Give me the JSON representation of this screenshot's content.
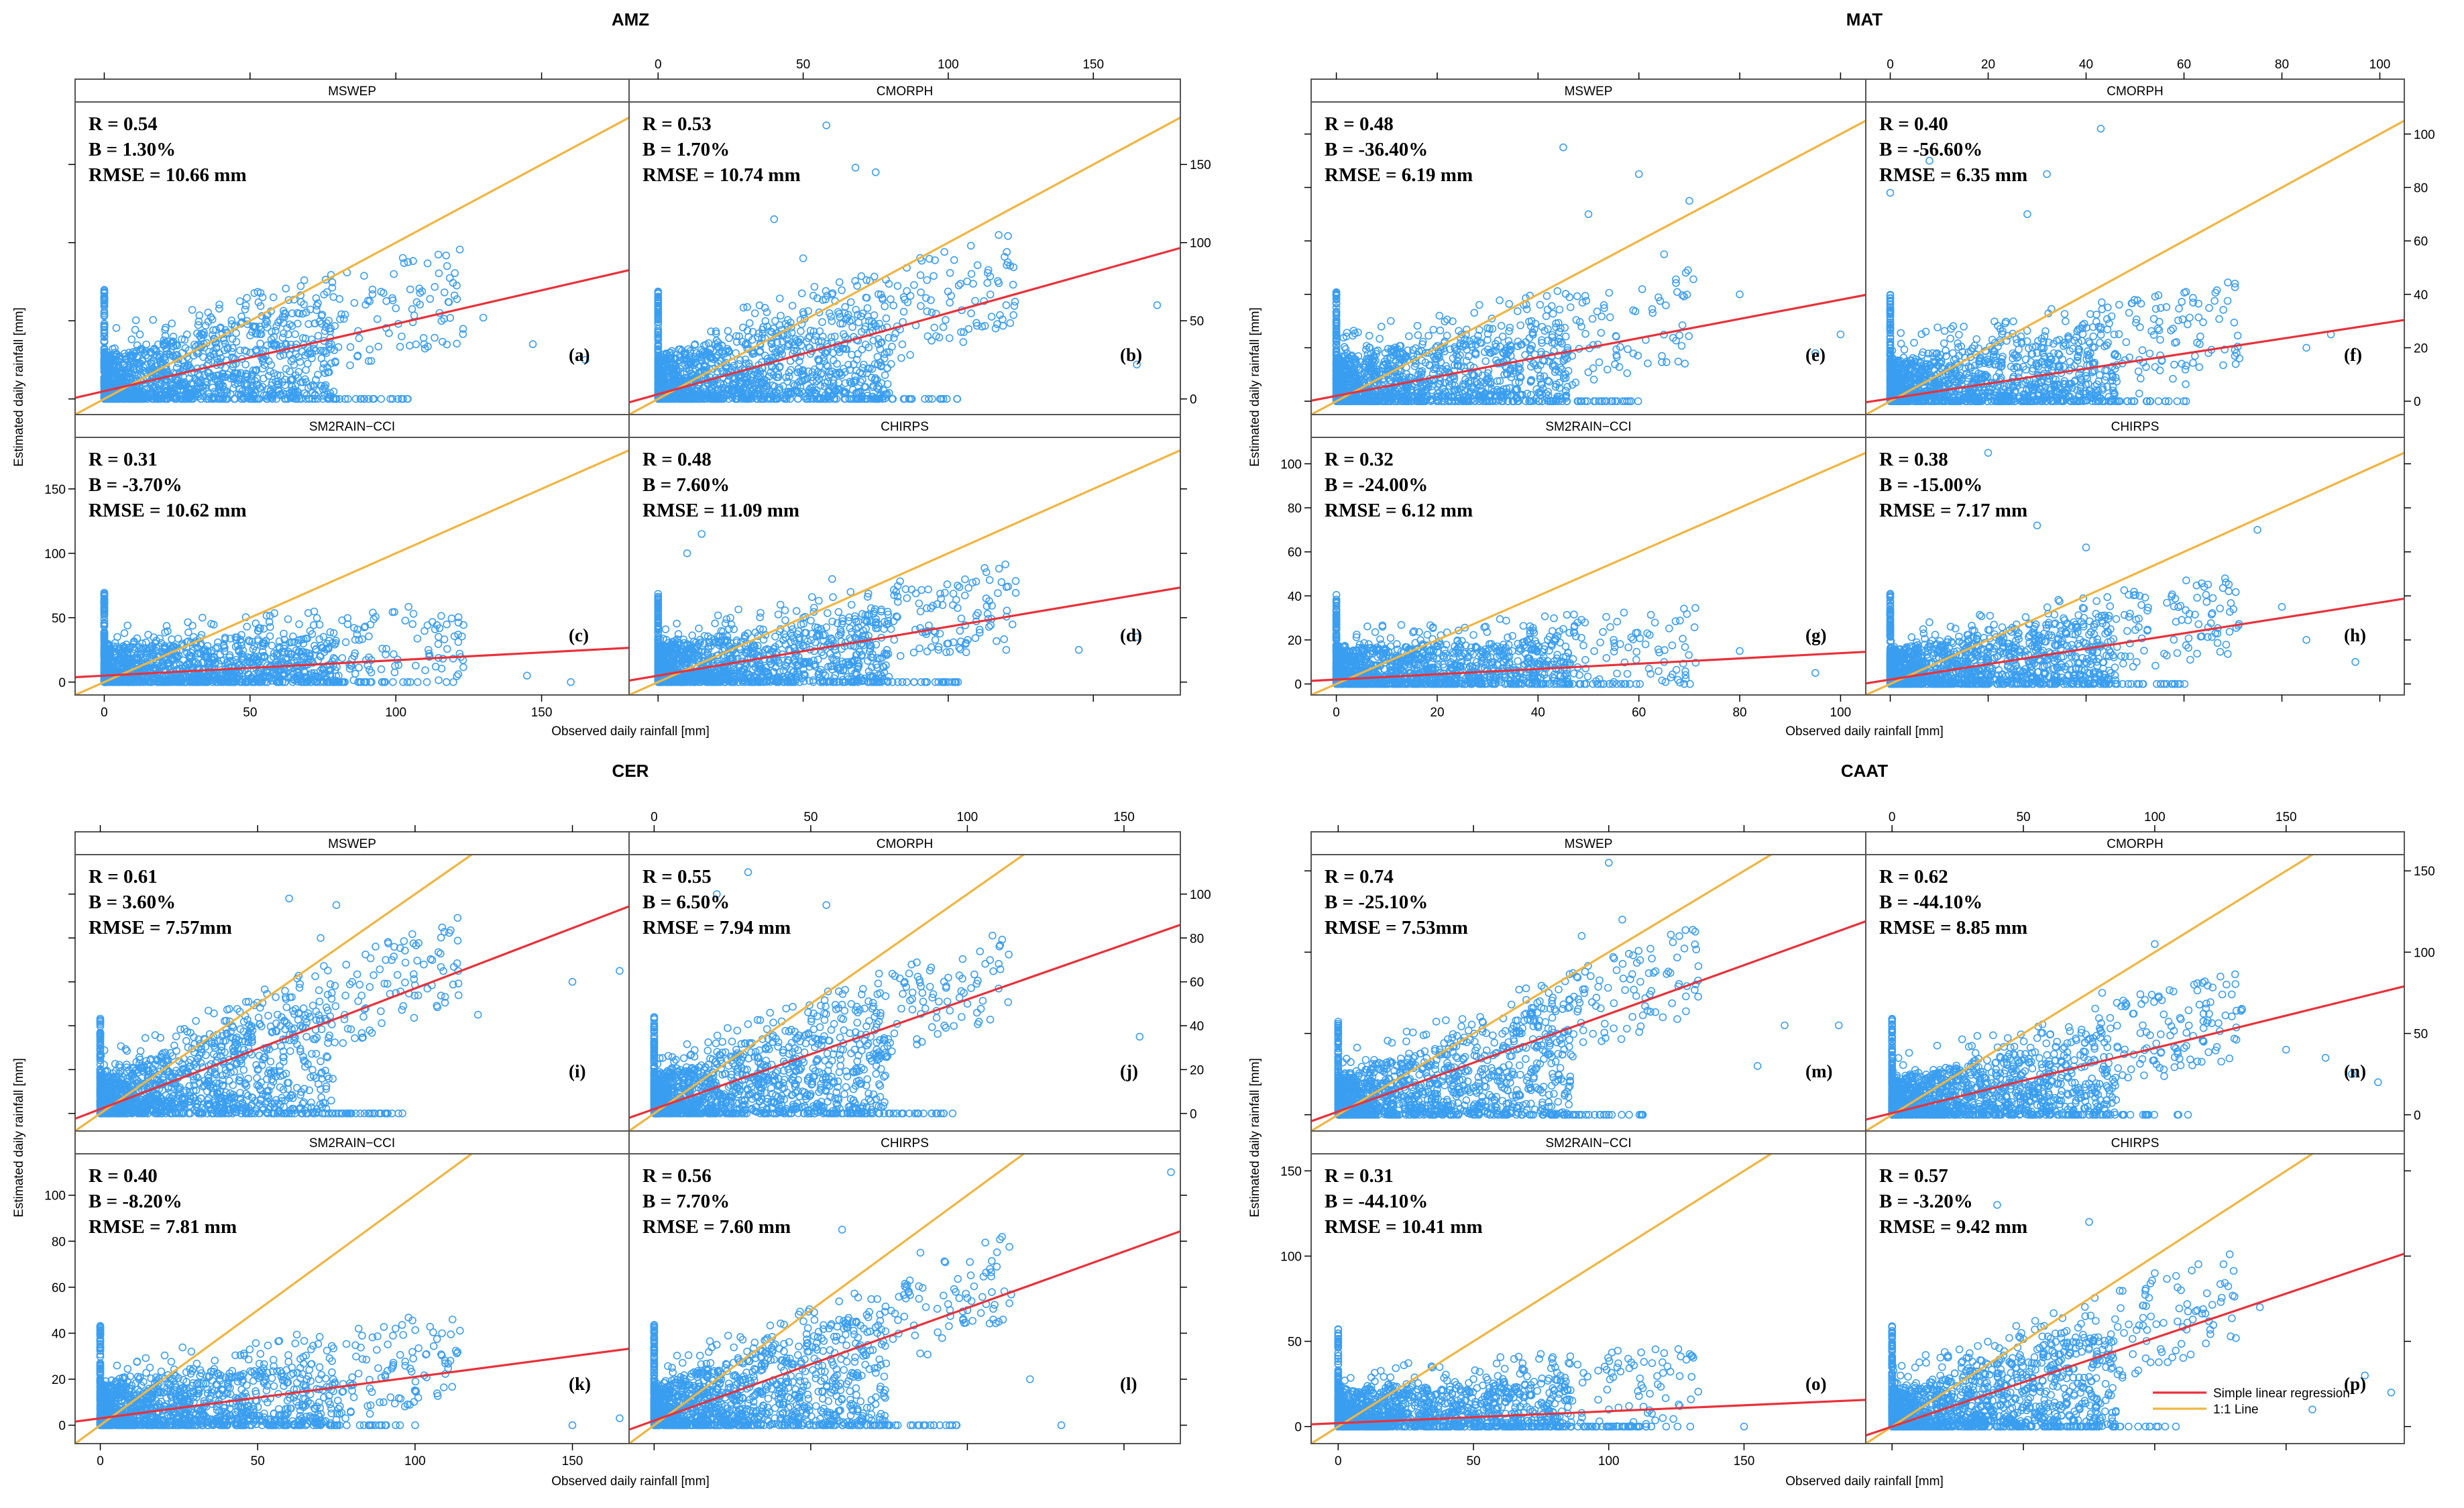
{
  "legend": {
    "regression": "Simple linear regression",
    "oneone": "1:1 Line"
  },
  "colors": {
    "points": "#3a9ef0",
    "regression": "#e8313a",
    "oneone": "#f0b540",
    "frame": "#555555",
    "strip_bg": "#ffffff"
  },
  "chart_data": [
    {
      "type": "scatter",
      "title": "AMZ",
      "xlabel": "Observed daily rainfall [mm]",
      "ylabel": "Estimated daily rainfall [mm]",
      "xlim": [
        -10,
        180
      ],
      "ylim": [
        -10,
        190
      ],
      "x_ticks": [
        0,
        50,
        100,
        150
      ],
      "y_ticks": [
        0,
        50,
        100,
        150
      ],
      "y_ticks_right": [
        0,
        50,
        100,
        150
      ],
      "panels": [
        {
          "product": "MSWEP",
          "tag": "(a)",
          "stats": [
            "R = 0.54",
            "B = 1.30%",
            "RMSE = 10.66 mm"
          ],
          "intercept": 5,
          "slope": 0.43,
          "outliers": [
            [
              92,
              70
            ],
            [
              118,
              62
            ],
            [
              100,
              58
            ],
            [
              58,
              65
            ],
            [
              115,
              55
            ],
            [
              92,
              67
            ],
            [
              130,
              52
            ],
            [
              165,
              25
            ],
            [
              102,
              40
            ],
            [
              147,
              35
            ]
          ]
        },
        {
          "product": "CMORPH",
          "tag": "(b)",
          "stats": [
            "R = 0.53",
            "B = 1.70%",
            "RMSE = 10.74 mm"
          ],
          "intercept": 3,
          "slope": 0.52,
          "outliers": [
            [
              58,
              175
            ],
            [
              68,
              148
            ],
            [
              75,
              145
            ],
            [
              40,
              115
            ],
            [
              165,
              22
            ],
            [
              172,
              60
            ],
            [
              108,
              80
            ],
            [
              120,
              60
            ],
            [
              50,
              90
            ]
          ]
        },
        {
          "product": "SM2RAIN−CCI",
          "tag": "(c)",
          "stats": [
            "R = 0.31",
            "B = -3.70%",
            "RMSE = 10.62 mm"
          ],
          "intercept": 5,
          "slope": 0.12,
          "outliers": [
            [
              85,
              18
            ],
            [
              95,
              10
            ],
            [
              105,
              0
            ],
            [
              145,
              5
            ],
            [
              160,
              0
            ]
          ]
        },
        {
          "product": "CHIRPS",
          "tag": "(d)",
          "stats": [
            "R = 0.48",
            "B = 7.60%",
            "RMSE = 11.09 mm"
          ],
          "intercept": 5,
          "slope": 0.38,
          "outliers": [
            [
              15,
              115
            ],
            [
              10,
              100
            ],
            [
              60,
              80
            ],
            [
              145,
              25
            ],
            [
              165,
              35
            ],
            [
              120,
              25
            ],
            [
              100,
              30
            ]
          ]
        }
      ]
    },
    {
      "type": "scatter",
      "title": "MAT",
      "xlabel": "Observed daily rainfall [mm]",
      "ylabel": "Estimated daily rainfall [mm]",
      "xlim": [
        -5,
        105
      ],
      "ylim": [
        -5,
        112
      ],
      "x_ticks": [
        0,
        20,
        40,
        60,
        80,
        100
      ],
      "y_ticks": [
        0,
        20,
        40,
        60,
        80,
        100
      ],
      "y_ticks_right": [
        0,
        20,
        40,
        60,
        80,
        100
      ],
      "panels": [
        {
          "product": "MSWEP",
          "tag": "(e)",
          "stats": [
            "R = 0.48",
            "B = -36.40%",
            "RMSE = 6.19 mm"
          ],
          "intercept": 2,
          "slope": 0.36,
          "outliers": [
            [
              45,
              95
            ],
            [
              60,
              85
            ],
            [
              70,
              75
            ],
            [
              50,
              70
            ],
            [
              95,
              18
            ],
            [
              100,
              25
            ],
            [
              80,
              40
            ],
            [
              65,
              55
            ]
          ]
        },
        {
          "product": "CMORPH",
          "tag": "(f)",
          "stats": [
            "R = 0.40",
            "B = -56.60%",
            "RMSE =  6.35 mm"
          ],
          "intercept": 1,
          "slope": 0.28,
          "outliers": [
            [
              43,
              102
            ],
            [
              32,
              85
            ],
            [
              28,
              70
            ],
            [
              0,
              78
            ],
            [
              8,
              90
            ],
            [
              65,
              18
            ],
            [
              85,
              20
            ],
            [
              90,
              25
            ]
          ]
        },
        {
          "product": "SM2RAIN−CCI",
          "tag": "(g)",
          "stats": [
            "R = 0.32",
            "B = -24.00%",
            "RMSE = 6.12 mm"
          ],
          "intercept": 2,
          "slope": 0.12,
          "outliers": [
            [
              55,
              20
            ],
            [
              65,
              10
            ],
            [
              80,
              15
            ],
            [
              95,
              5
            ],
            [
              45,
              25
            ]
          ]
        },
        {
          "product": "CHIRPS",
          "tag": "(h)",
          "stats": [
            "R = 0.38",
            "B = -15.00%",
            "RMSE = 7.17 mm"
          ],
          "intercept": 2,
          "slope": 0.35,
          "outliers": [
            [
              20,
              105
            ],
            [
              30,
              72
            ],
            [
              40,
              62
            ],
            [
              75,
              70
            ],
            [
              85,
              20
            ],
            [
              95,
              10
            ],
            [
              80,
              35
            ]
          ]
        }
      ]
    },
    {
      "type": "scatter",
      "title": "CER",
      "xlabel": "Observed daily rainfall [mm]",
      "ylabel": "Estimated daily rainfall [mm]",
      "xlim": [
        -8,
        168
      ],
      "ylim": [
        -8,
        118
      ],
      "x_ticks": [
        0,
        50,
        100,
        150
      ],
      "y_ticks": [
        0,
        20,
        40,
        60,
        80,
        100
      ],
      "y_ticks_right": [
        0,
        20,
        40,
        60,
        80,
        100
      ],
      "panels": [
        {
          "product": "MSWEP",
          "tag": "(i)",
          "stats": [
            "R = 0.61",
            "B = 3.60%",
            "RMSE = 7.57mm"
          ],
          "intercept": 2,
          "slope": 0.55,
          "outliers": [
            [
              60,
              98
            ],
            [
              75,
              95
            ],
            [
              70,
              80
            ],
            [
              80,
              60
            ],
            [
              150,
              60
            ],
            [
              165,
              65
            ],
            [
              120,
              45
            ]
          ]
        },
        {
          "product": "CMORPH",
          "tag": "(j)",
          "stats": [
            "R = 0.55",
            "B = 6.50%",
            "RMSE = 7.94 mm"
          ],
          "intercept": 2,
          "slope": 0.5,
          "outliers": [
            [
              30,
              110
            ],
            [
              55,
              95
            ],
            [
              20,
              100
            ],
            [
              80,
              60
            ],
            [
              155,
              35
            ],
            [
              100,
              50
            ]
          ]
        },
        {
          "product": "SM2RAIN−CCI",
          "tag": "(k)",
          "stats": [
            "R = 0.40",
            "B = -8.20%",
            "RMSE = 7.81 mm"
          ],
          "intercept": 3,
          "slope": 0.18,
          "outliers": [
            [
              80,
              15
            ],
            [
              90,
              10
            ],
            [
              100,
              0
            ],
            [
              150,
              0
            ],
            [
              165,
              3
            ]
          ]
        },
        {
          "product": "CHIRPS",
          "tag": "(l)",
          "stats": [
            "R = 0.56",
            "B = 7.70%",
            "RMSE = 7.60 mm"
          ],
          "intercept": 2,
          "slope": 0.49,
          "outliers": [
            [
              165,
              110
            ],
            [
              60,
              85
            ],
            [
              85,
              75
            ],
            [
              100,
              50
            ],
            [
              110,
              45
            ],
            [
              130,
              0
            ],
            [
              120,
              20
            ]
          ]
        }
      ]
    },
    {
      "type": "scatter",
      "title": "CAAT",
      "xlabel": "Observed daily rainfall [mm]",
      "ylabel": "Estimated daily rainfall [mm]",
      "xlim": [
        -10,
        195
      ],
      "ylim": [
        -10,
        160
      ],
      "x_ticks": [
        0,
        50,
        100,
        150
      ],
      "y_ticks": [
        0,
        50,
        100,
        150
      ],
      "y_ticks_right": [
        0,
        50,
        100,
        150
      ],
      "panels": [
        {
          "product": "MSWEP",
          "tag": "(m)",
          "stats": [
            "R = 0.74",
            "B = -25.10%",
            "RMSE = 7.53mm"
          ],
          "intercept": 2,
          "slope": 0.6,
          "outliers": [
            [
              100,
              155
            ],
            [
              105,
              120
            ],
            [
              90,
              110
            ],
            [
              120,
              60
            ],
            [
              165,
              55
            ],
            [
              185,
              55
            ],
            [
              155,
              30
            ]
          ]
        },
        {
          "product": "CMORPH",
          "tag": "(n)",
          "stats": [
            "R = 0.62",
            "B = -44.10%",
            "RMSE = 8.85 mm"
          ],
          "intercept": 1,
          "slope": 0.4,
          "outliers": [
            [
              100,
              105
            ],
            [
              115,
              80
            ],
            [
              80,
              75
            ],
            [
              150,
              40
            ],
            [
              165,
              35
            ],
            [
              185,
              20
            ],
            [
              175,
              25
            ]
          ]
        },
        {
          "product": "SM2RAIN−CCI",
          "tag": "(o)",
          "stats": [
            "R = 0.31",
            "B = -44.10%",
            "RMSE = 10.41 mm"
          ],
          "intercept": 2,
          "slope": 0.07,
          "outliers": [
            [
              100,
              10
            ],
            [
              120,
              5
            ],
            [
              150,
              0
            ],
            [
              90,
              8
            ]
          ]
        },
        {
          "product": "CHIRPS",
          "tag": "(p)",
          "stats": [
            "R = 0.57",
            "B = -3.20%",
            "RMSE = 9.42 mm"
          ],
          "intercept": 0,
          "slope": 0.52,
          "outliers": [
            [
              40,
              130
            ],
            [
              75,
              120
            ],
            [
              100,
              90
            ],
            [
              110,
              80
            ],
            [
              140,
              70
            ],
            [
              180,
              30
            ],
            [
              190,
              20
            ],
            [
              160,
              10
            ]
          ]
        }
      ]
    }
  ]
}
